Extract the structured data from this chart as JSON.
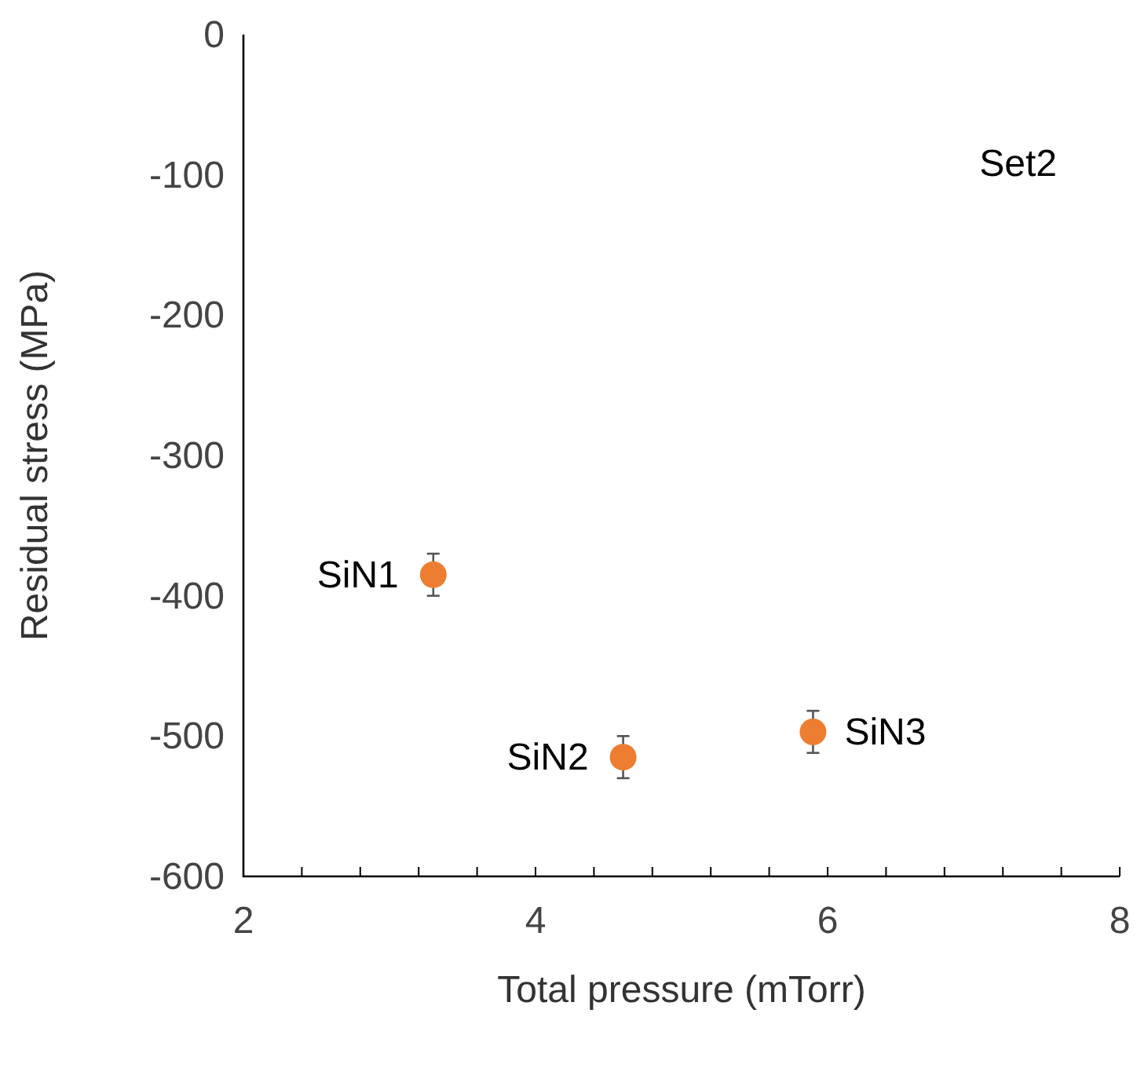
{
  "chart_data": {
    "type": "scatter",
    "xlabel": "Total pressure (mTorr)",
    "ylabel": "Residual stress (MPa)",
    "x": [
      3.3,
      4.6,
      5.9
    ],
    "series": [
      {
        "color": "#ed7d31",
        "values": [
          -385,
          -515,
          -497
        ],
        "errors": [
          15,
          15,
          15
        ]
      }
    ],
    "xlim": [
      2,
      8
    ],
    "ylim": [
      -600,
      0
    ],
    "xticks": [
      2,
      {
        "value": 2.4,
        "label": null
      },
      {
        "value": 2.8,
        "label": null
      },
      {
        "value": 3.2,
        "label": null
      },
      {
        "value": 3.6,
        "label": null
      },
      4,
      {
        "value": 4.4,
        "label": null
      },
      {
        "value": 4.8,
        "label": null
      },
      {
        "value": 5.2,
        "label": null
      },
      {
        "value": 5.6,
        "label": null
      },
      6,
      {
        "value": 6.4,
        "label": null
      },
      {
        "value": 6.8,
        "label": null
      },
      {
        "value": 7.2,
        "label": null
      },
      {
        "value": 7.6,
        "label": null
      },
      8
    ],
    "yticks": [
      -600,
      -500,
      -400,
      -300,
      -200,
      -100,
      0
    ],
    "marker": "circle",
    "grid": false,
    "annotations": [
      {
        "text": "Set2"
      },
      {
        "text": "SiN1",
        "x": 3.3,
        "y": -385
      },
      {
        "text": "SiN2",
        "x": 4.6,
        "y": -515
      },
      {
        "text": "SiN3",
        "x": 5.9,
        "y": -497
      }
    ]
  }
}
